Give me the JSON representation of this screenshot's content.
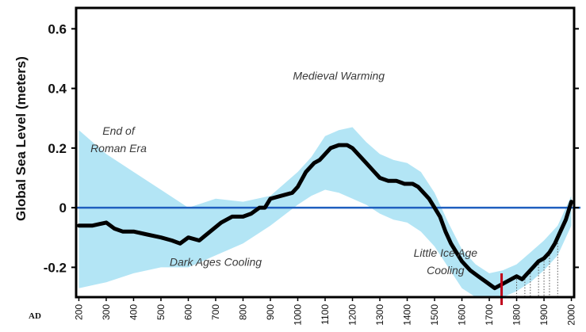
{
  "chart_data": {
    "type": "line",
    "title": "",
    "xlabel": "",
    "x_axis_prefix": "AD",
    "ylabel": "Global Sea Level (meters)",
    "xlim": [
      190,
      2010
    ],
    "ylim": [
      -0.3,
      0.67
    ],
    "yticks": [
      {
        "value": 0.6,
        "label": "0.6"
      },
      {
        "value": 0.4,
        "label": "0.4"
      },
      {
        "value": 0.2,
        "label": "0.2"
      },
      {
        "value": 0,
        "label": "0"
      },
      {
        "value": -0.2,
        "label": "-0.2"
      }
    ],
    "xticks": [
      {
        "value": 200,
        "label": "200"
      },
      {
        "value": 300,
        "label": "300"
      },
      {
        "value": 400,
        "label": "400"
      },
      {
        "value": 500,
        "label": "500"
      },
      {
        "value": 600,
        "label": "600"
      },
      {
        "value": 700,
        "label": "700"
      },
      {
        "value": 800,
        "label": "800"
      },
      {
        "value": 900,
        "label": "900"
      },
      {
        "value": 1000,
        "label": "1000"
      },
      {
        "value": 1100,
        "label": "1100"
      },
      {
        "value": 1200,
        "label": "1200"
      },
      {
        "value": 1300,
        "label": "1300"
      },
      {
        "value": 1400,
        "label": "1400"
      },
      {
        "value": 1500,
        "label": "1500"
      },
      {
        "value": 1600,
        "label": "1600"
      },
      {
        "value": 1700,
        "label": "1700"
      },
      {
        "value": 1800,
        "label": "1800"
      },
      {
        "value": 1900,
        "label": "1900"
      },
      {
        "value": 2000,
        "label": "2000"
      }
    ],
    "series": [
      {
        "role": "mean",
        "color": "#000000",
        "x": [
          200,
          250,
          300,
          330,
          360,
          400,
          450,
          500,
          540,
          570,
          600,
          640,
          680,
          720,
          760,
          800,
          830,
          860,
          880,
          900,
          940,
          980,
          1000,
          1030,
          1060,
          1080,
          1100,
          1120,
          1150,
          1180,
          1200,
          1220,
          1250,
          1280,
          1300,
          1330,
          1360,
          1390,
          1420,
          1440,
          1460,
          1480,
          1500,
          1520,
          1540,
          1560,
          1580,
          1600,
          1630,
          1660,
          1690,
          1720,
          1740,
          1760,
          1780,
          1800,
          1820,
          1840,
          1860,
          1880,
          1900,
          1920,
          1940,
          1960,
          1980,
          2000
        ],
        "y": [
          -0.06,
          -0.06,
          -0.05,
          -0.07,
          -0.08,
          -0.08,
          -0.09,
          -0.1,
          -0.11,
          -0.12,
          -0.1,
          -0.11,
          -0.08,
          -0.05,
          -0.03,
          -0.03,
          -0.02,
          0.0,
          0.0,
          0.03,
          0.04,
          0.05,
          0.07,
          0.12,
          0.15,
          0.16,
          0.18,
          0.2,
          0.21,
          0.21,
          0.2,
          0.18,
          0.15,
          0.12,
          0.1,
          0.09,
          0.09,
          0.08,
          0.08,
          0.07,
          0.05,
          0.03,
          0.0,
          -0.03,
          -0.08,
          -0.12,
          -0.15,
          -0.18,
          -0.21,
          -0.23,
          -0.25,
          -0.27,
          -0.26,
          -0.25,
          -0.24,
          -0.23,
          -0.24,
          -0.22,
          -0.2,
          -0.18,
          -0.17,
          -0.15,
          -0.12,
          -0.08,
          -0.04,
          0.02
        ]
      },
      {
        "role": "uncertainty-upper",
        "color": "#b3e5f5",
        "x": [
          200,
          300,
          400,
          500,
          600,
          700,
          800,
          900,
          1000,
          1050,
          1100,
          1150,
          1200,
          1250,
          1300,
          1350,
          1400,
          1450,
          1500,
          1550,
          1600,
          1650,
          1700,
          1750,
          1800,
          1850,
          1900,
          1950,
          2000
        ],
        "y": [
          0.26,
          0.18,
          0.12,
          0.06,
          0.0,
          0.03,
          0.02,
          0.04,
          0.12,
          0.17,
          0.24,
          0.26,
          0.27,
          0.22,
          0.18,
          0.16,
          0.15,
          0.12,
          0.05,
          -0.05,
          -0.14,
          -0.19,
          -0.22,
          -0.21,
          -0.19,
          -0.15,
          -0.11,
          -0.06,
          0.04
        ]
      },
      {
        "role": "uncertainty-lower",
        "color": "#b3e5f5",
        "x": [
          200,
          300,
          400,
          500,
          600,
          700,
          800,
          900,
          1000,
          1050,
          1100,
          1150,
          1200,
          1250,
          1300,
          1350,
          1400,
          1450,
          1500,
          1550,
          1600,
          1650,
          1700,
          1750,
          1800,
          1850,
          1900,
          1950,
          2000
        ],
        "y": [
          -0.27,
          -0.25,
          -0.22,
          -0.2,
          -0.2,
          -0.16,
          -0.12,
          -0.06,
          0.01,
          0.04,
          0.06,
          0.05,
          0.03,
          0.01,
          -0.02,
          -0.04,
          -0.05,
          -0.08,
          -0.13,
          -0.2,
          -0.27,
          -0.3,
          -0.3,
          -0.3,
          -0.28,
          -0.25,
          -0.21,
          -0.16,
          -0.06
        ]
      }
    ],
    "reference_line": {
      "y": 0,
      "color": "#1f5fbf"
    },
    "marker": {
      "x": 1745,
      "color": "#c0001a"
    },
    "dotted_verticals_x": [
      1800,
      1830,
      1850,
      1880,
      1900,
      1920,
      1950
    ],
    "annotations": [
      {
        "id": "medieval",
        "lines": [
          "Medieval Warming"
        ],
        "x": 1150,
        "y": 0.43
      },
      {
        "id": "roman",
        "lines": [
          "End of",
          "Roman Era"
        ],
        "x": 345,
        "y": 0.245
      },
      {
        "id": "dark-ages",
        "lines": [
          "Dark Ages Cooling"
        ],
        "x": 700,
        "y": -0.195
      },
      {
        "id": "little-ice",
        "lines": [
          "Little Ice Age",
          "Cooling"
        ],
        "x": 1540,
        "y": -0.165
      }
    ],
    "grid": false,
    "legend": "none"
  }
}
